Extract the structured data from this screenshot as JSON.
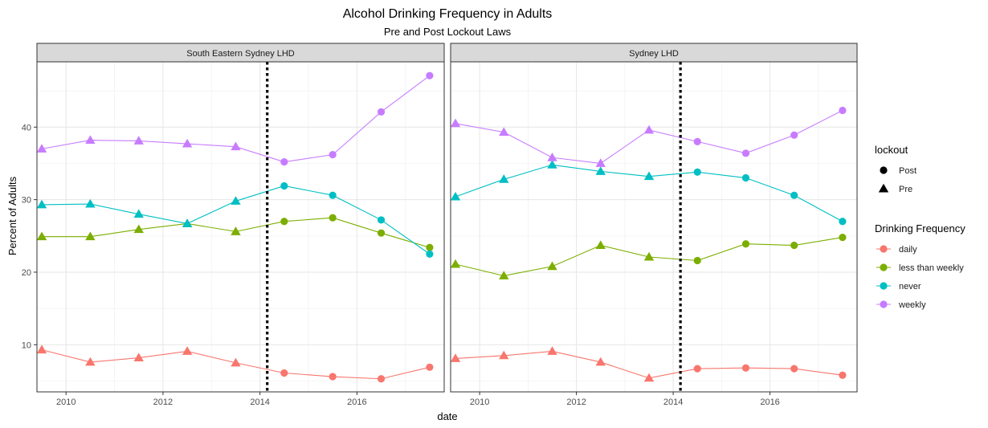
{
  "chart_data": {
    "type": "line",
    "title": "Alcohol Drinking Frequency in Adults",
    "subtitle": "Pre and Post Lockout Laws",
    "xlabel": "date",
    "ylabel": "Percent of Adults",
    "xlim": [
      2009.4,
      2017.8
    ],
    "ylim": [
      3.5,
      49
    ],
    "x_ticks": [
      2010,
      2012,
      2014,
      2016
    ],
    "x_tick_labels": [
      "2010",
      "2012",
      "2014",
      "2016"
    ],
    "y_ticks": [
      10,
      20,
      30,
      40
    ],
    "y_tick_labels": [
      "10",
      "20",
      "30",
      "40"
    ],
    "grid": true,
    "lockout_date": 2014.15,
    "x": [
      2009.5,
      2010.5,
      2011.5,
      2012.5,
      2013.5,
      2014.5,
      2015.5,
      2016.5,
      2017.5
    ],
    "lockout_by_point": [
      "Pre",
      "Pre",
      "Pre",
      "Pre",
      "Pre",
      "Post",
      "Post",
      "Post",
      "Post"
    ],
    "colors": {
      "daily": "#F8766D",
      "less than weekly": "#7CAE00",
      "never": "#00BFC4",
      "weekly": "#C77CFF",
      "lockout_line": "#000000"
    },
    "legend_position": "right",
    "legend": {
      "shape_title": "lockout",
      "shape_items": [
        "Post",
        "Pre"
      ],
      "color_title": "Drinking Frequency",
      "color_items": [
        "daily",
        "less than weekly",
        "never",
        "weekly"
      ]
    },
    "panels": [
      {
        "name": "South Eastern Sydney LHD",
        "series": [
          {
            "name": "daily",
            "values": [
              9.3,
              7.6,
              8.2,
              9.1,
              7.5,
              6.1,
              5.6,
              5.3,
              6.9
            ]
          },
          {
            "name": "less than weekly",
            "values": [
              24.9,
              24.9,
              25.9,
              26.7,
              25.6,
              27.0,
              27.5,
              25.4,
              23.4
            ]
          },
          {
            "name": "never",
            "values": [
              29.3,
              29.4,
              28.0,
              26.7,
              29.8,
              31.9,
              30.6,
              27.2,
              22.5
            ]
          },
          {
            "name": "weekly",
            "values": [
              37.0,
              38.2,
              38.1,
              37.7,
              37.3,
              35.2,
              36.2,
              42.1,
              47.1
            ]
          }
        ]
      },
      {
        "name": "Sydney LHD",
        "series": [
          {
            "name": "daily",
            "values": [
              8.1,
              8.5,
              9.1,
              7.6,
              5.4,
              6.7,
              6.8,
              6.7,
              5.8
            ]
          },
          {
            "name": "less than weekly",
            "values": [
              21.1,
              19.5,
              20.8,
              23.7,
              22.1,
              21.6,
              23.9,
              23.7,
              24.8
            ]
          },
          {
            "name": "never",
            "values": [
              30.4,
              32.8,
              34.8,
              33.9,
              33.2,
              33.8,
              33.0,
              30.6,
              27.0
            ]
          },
          {
            "name": "weekly",
            "values": [
              40.5,
              39.3,
              35.8,
              35.0,
              39.6,
              38.0,
              36.4,
              38.9,
              42.3
            ]
          }
        ]
      }
    ]
  }
}
